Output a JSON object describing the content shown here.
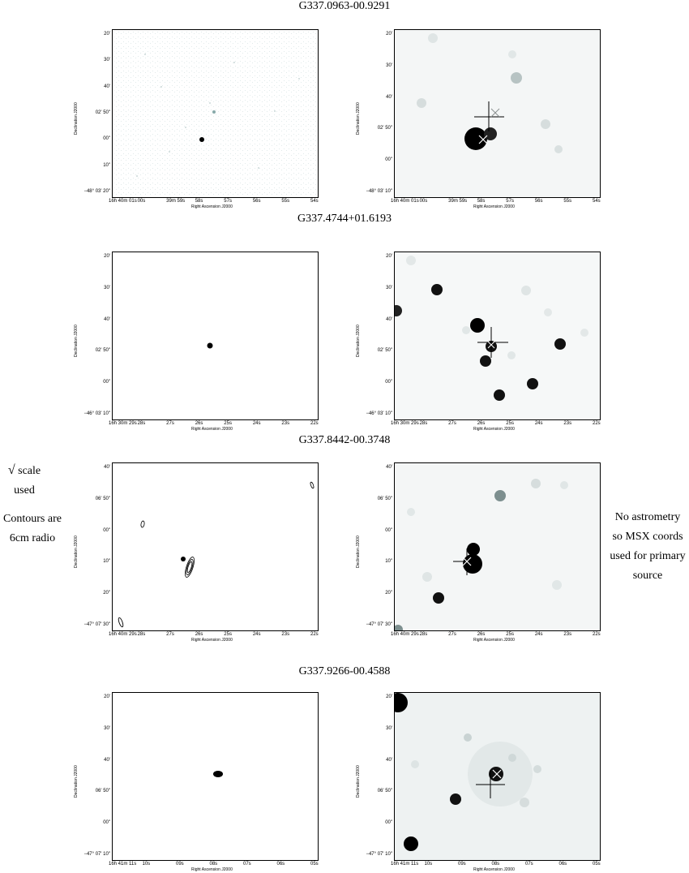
{
  "figures": [
    {
      "title": "G337.0963-00.9291",
      "left": {
        "y_ticks": [
          "20'",
          "30'",
          "40'",
          "02' 50\"",
          "00\"",
          "10\"",
          "−48° 03' 20\""
        ],
        "x_ticks": [
          "16h 40m 01s",
          "00s",
          "39m 59s",
          "58s",
          "57s",
          "56s",
          "55s",
          "54s"
        ],
        "xlabel": "Right Ascension J2000",
        "ylabel": "Declination J2000"
      },
      "right": {
        "y_ticks": [
          "20'",
          "30'",
          "40'",
          "02' 50\"",
          "00\"",
          "−48° 03' 10\""
        ],
        "x_ticks": [
          "16h 40m 01s",
          "00s",
          "39m 59s",
          "58s",
          "57s",
          "56s",
          "55s",
          "54s"
        ],
        "xlabel": "Right Ascension J2000",
        "ylabel": "Declination J2000"
      }
    },
    {
      "title": "G337.4744+01.6193",
      "left": {
        "y_ticks": [
          "20'",
          "30'",
          "40'",
          "02' 50\"",
          "00\"",
          "−46° 03' 10\""
        ],
        "x_ticks": [
          "16h 30m 29s",
          "28s",
          "27s",
          "26s",
          "25s",
          "24s",
          "23s",
          "22s"
        ],
        "xlabel": "Right Ascension J2000",
        "ylabel": "Declination J2000"
      },
      "right": {
        "y_ticks": [
          "20'",
          "30'",
          "40'",
          "02' 50\"",
          "00\"",
          "−46° 03' 10\""
        ],
        "x_ticks": [
          "16h 30m 29s",
          "28s",
          "27s",
          "26s",
          "25s",
          "24s",
          "23s",
          "22s"
        ],
        "xlabel": "Right Ascension J2000",
        "ylabel": "Declination J2000"
      }
    },
    {
      "title": "G337.8442-00.3748",
      "left": {
        "y_ticks": [
          "40'",
          "06' 50\"",
          "00\"",
          "10\"",
          "20\"",
          "−47° 07' 30\""
        ],
        "x_ticks": [
          "16h 40m 29s",
          "28s",
          "27s",
          "26s",
          "25s",
          "24s",
          "23s",
          "22s"
        ],
        "xlabel": "Right Ascension J2000",
        "ylabel": "Declination J2000"
      },
      "right": {
        "y_ticks": [
          "40'",
          "06' 50\"",
          "00\"",
          "10\"",
          "20\"",
          "−47° 07' 30\""
        ],
        "x_ticks": [
          "16h 40m 29s",
          "28s",
          "27s",
          "26s",
          "25s",
          "24s",
          "23s",
          "22s"
        ],
        "xlabel": "Right Ascension J2000",
        "ylabel": "Declination J2000"
      }
    },
    {
      "title": "G337.9266-00.4588",
      "left": {
        "y_ticks": [
          "20'",
          "30'",
          "40'",
          "06' 50\"",
          "00\"",
          "−47° 07' 10\""
        ],
        "x_ticks": [
          "16h 41m 11s",
          "10s",
          "09s",
          "08s",
          "07s",
          "06s",
          "05s"
        ],
        "xlabel": "Right Ascension J2000",
        "ylabel": "Declination J2000"
      },
      "right": {
        "y_ticks": [
          "20'",
          "30'",
          "40'",
          "06' 50\"",
          "00\"",
          "−47° 07' 10\""
        ],
        "x_ticks": [
          "16h 41m 11s",
          "10s",
          "09s",
          "08s",
          "07s",
          "06s",
          "05s"
        ],
        "xlabel": "Right Ascension J2000",
        "ylabel": "Declination J2000"
      }
    }
  ],
  "notes": {
    "sqrt_symbol": "√",
    "scale_text": "scale used",
    "contours_line1": "Contours are",
    "contours_line2": "6cm radio",
    "astrometry_line1": "No astrometry",
    "astrometry_line2": "so MSX coords",
    "astrometry_line3": "used for primary",
    "astrometry_line4": "source"
  }
}
